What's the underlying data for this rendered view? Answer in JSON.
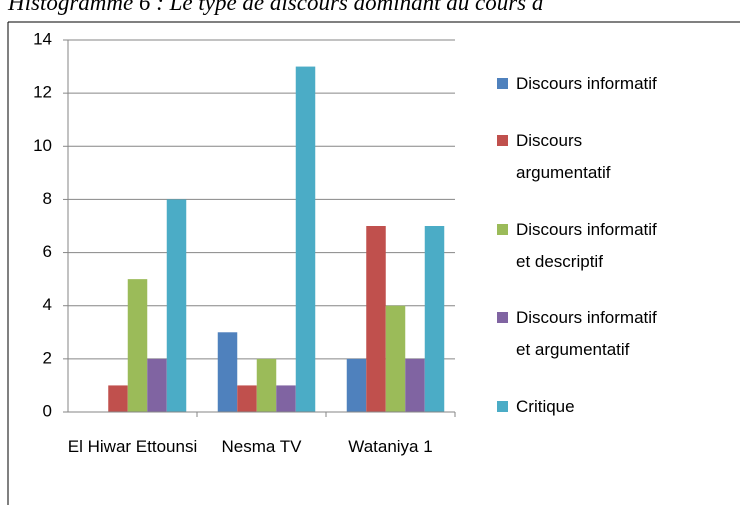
{
  "chart_data": {
    "type": "bar",
    "title": "Histogramme 6 : Le type de discours dominant au cours d",
    "categories": [
      "El Hiwar Ettounsi",
      "Nesma TV",
      "Wataniya 1"
    ],
    "series": [
      {
        "name": "Discours informatif",
        "color": "#4f81bd",
        "values": [
          0,
          3,
          2
        ]
      },
      {
        "name": "Discours argumentatif",
        "color": "#c0504d",
        "values": [
          1,
          1,
          7
        ]
      },
      {
        "name": "Discours informatif et descriptif",
        "color": "#9bbb59",
        "values": [
          5,
          2,
          4
        ]
      },
      {
        "name": "Discours informatif et argumentatif",
        "color": "#8064a2",
        "values": [
          2,
          1,
          2
        ]
      },
      {
        "name": "Critique",
        "color": "#4bacc6",
        "values": [
          8,
          13,
          7
        ]
      }
    ],
    "ylim": [
      0,
      14
    ],
    "yticks": [
      0,
      2,
      4,
      6,
      8,
      10,
      12,
      14
    ],
    "grid": true,
    "legend": "right"
  }
}
